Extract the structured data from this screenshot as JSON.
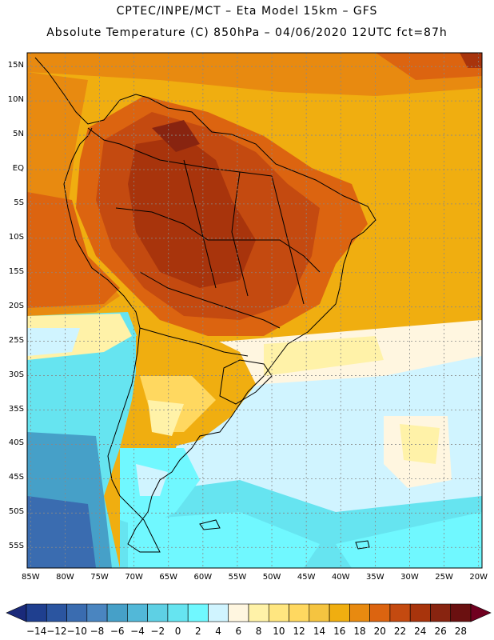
{
  "header": {
    "line1": "CPTEC/INPE/MCT –  Eta Model 15km – GFS",
    "line2": "Absolute Temperature (C) 850hPa – 04/06/2020 12UTC fct=87h"
  },
  "map": {
    "lat_labels": [
      "15N",
      "10N",
      "5N",
      "EQ",
      "5S",
      "10S",
      "15S",
      "20S",
      "25S",
      "30S",
      "35S",
      "40S",
      "45S",
      "50S",
      "55S"
    ],
    "lat_values": [
      15,
      10,
      5,
      0,
      -5,
      -10,
      -15,
      -20,
      -25,
      -30,
      -35,
      -40,
      -45,
      -50,
      -55
    ],
    "lon_labels": [
      "85W",
      "80W",
      "75W",
      "70W",
      "65W",
      "60W",
      "55W",
      "50W",
      "45W",
      "40W",
      "35W",
      "30W",
      "25W",
      "20W"
    ],
    "lon_values": [
      -85,
      -80,
      -75,
      -70,
      -65,
      -60,
      -55,
      -50,
      -45,
      -40,
      -35,
      -30,
      -25,
      -20
    ],
    "extent": {
      "lon_min": -85.5,
      "lon_max": -19.5,
      "lat_min": -58,
      "lat_max": 17
    }
  },
  "colorbar": {
    "labels": [
      "-14",
      "-12",
      "-10",
      "-8",
      "-6",
      "-4",
      "-2",
      "0",
      "2",
      "4",
      "6",
      "8",
      "10",
      "12",
      "14",
      "16",
      "18",
      "20",
      "22",
      "24",
      "26",
      "28"
    ],
    "colors": [
      "#1f3f8f",
      "#2b55a0",
      "#3a6cb0",
      "#4a85c0",
      "#46a0c8",
      "#52b8d8",
      "#5ed0e4",
      "#66e4f0",
      "#70f8ff",
      "#d0f4ff",
      "#fff6e0",
      "#fff2a8",
      "#ffe680",
      "#ffd860",
      "#f5c440",
      "#f0ae10",
      "#e88a10",
      "#dc6410",
      "#c44a10",
      "#a8340c",
      "#882410",
      "#6a1010"
    ],
    "under_color": "#1a2a7a",
    "over_color": "#700020"
  }
}
